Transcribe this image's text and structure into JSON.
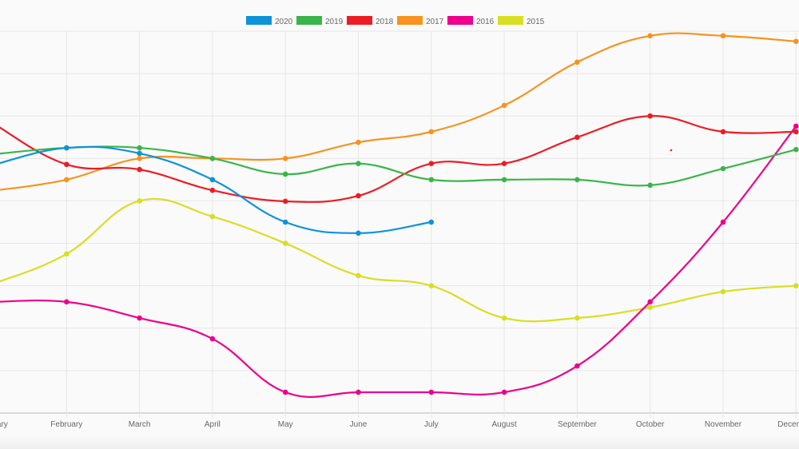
{
  "chart_data": {
    "type": "line",
    "title": "",
    "xlabel": "",
    "ylabel": "",
    "y_axis_labels_visible": false,
    "grid": true,
    "legend_position": "top",
    "categories": [
      "January",
      "February",
      "March",
      "April",
      "May",
      "June",
      "July",
      "August",
      "September",
      "October",
      "November",
      "December"
    ],
    "ylim": [
      0,
      9
    ],
    "series": [
      {
        "name": "2020",
        "color": "#0f93d8",
        "values": [
          5.85,
          6.25,
          6.12,
          5.5,
          4.5,
          4.24,
          4.5,
          null,
          null,
          null,
          null,
          null
        ]
      },
      {
        "name": "2019",
        "color": "#3ab54a",
        "values": [
          6.1,
          6.25,
          6.25,
          6.0,
          5.63,
          5.88,
          5.5,
          5.5,
          5.5,
          5.37,
          5.76,
          6.21
        ]
      },
      {
        "name": "2018",
        "color": "#ed1c24",
        "values": [
          6.82,
          5.86,
          5.74,
          5.25,
          4.99,
          5.12,
          5.88,
          5.88,
          6.5,
          7.0,
          6.63,
          6.63
        ]
      },
      {
        "name": "2017",
        "color": "#f7931e",
        "values": [
          5.24,
          5.5,
          6.0,
          6.0,
          6.0,
          6.38,
          6.63,
          7.25,
          8.27,
          8.89,
          8.89,
          8.76
        ]
      },
      {
        "name": "2016",
        "color": "#ec008c",
        "values": [
          2.62,
          2.62,
          2.24,
          1.75,
          0.49,
          0.49,
          0.49,
          0.49,
          1.11,
          2.62,
          4.5,
          6.76
        ]
      },
      {
        "name": "2015",
        "color": "#d7df23",
        "values": [
          3.05,
          3.75,
          5.0,
          4.63,
          4.0,
          3.24,
          3.0,
          2.24,
          2.24,
          2.49,
          2.86,
          3.0
        ]
      }
    ]
  }
}
